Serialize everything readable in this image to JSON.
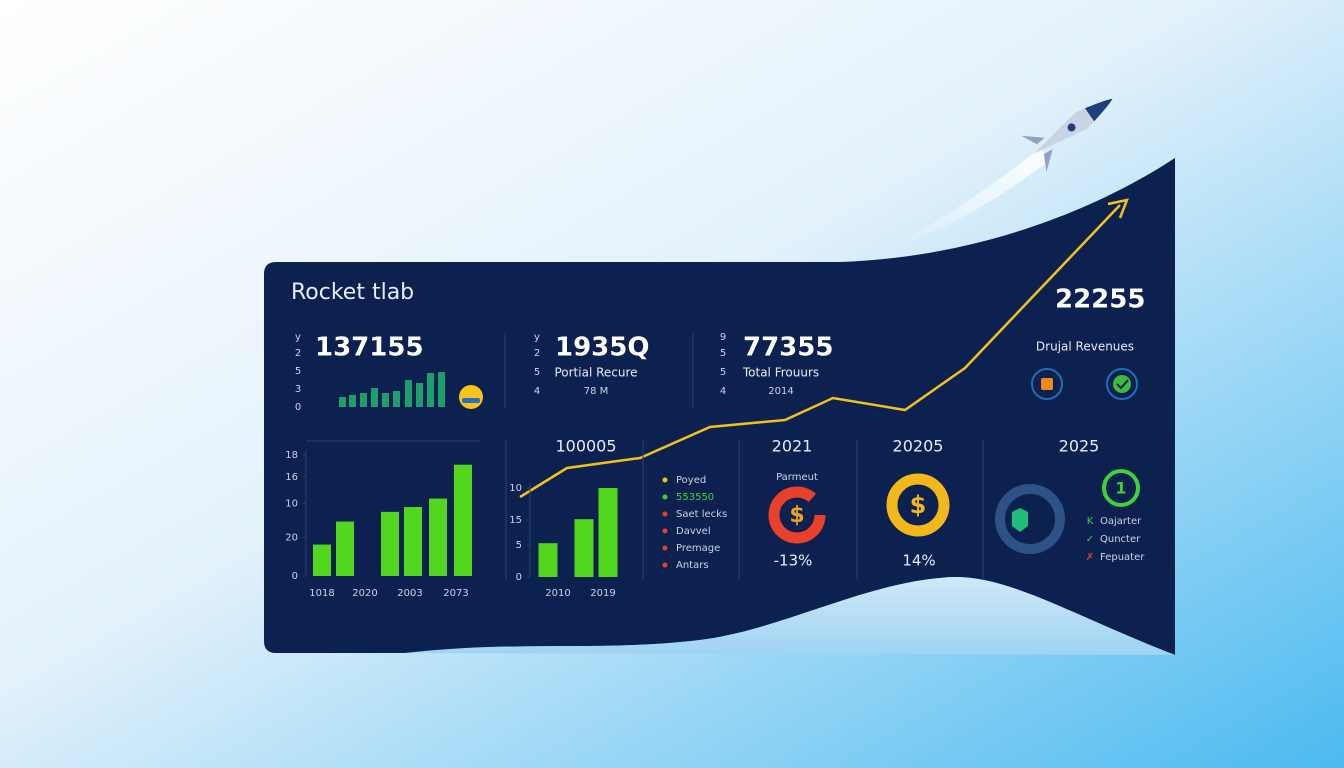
{
  "title": "Rocket tlab",
  "headline": "22255",
  "revenues_label": "Drujal Revenues",
  "kpis": [
    {
      "value": "137155",
      "ticks": [
        "y",
        "2",
        "5",
        "3",
        "0"
      ]
    },
    {
      "value": "1935Q",
      "label": "Portial Recure",
      "sub": "78 M",
      "ticks": [
        "y",
        "2",
        "5",
        "4"
      ]
    },
    {
      "value": "77355",
      "label": "Total Frouurs",
      "sub": "2014",
      "ticks": [
        "9",
        "5",
        "5",
        "4"
      ]
    }
  ],
  "charts": [
    {
      "type": "bar",
      "color": "#52d61e",
      "ylim": [
        0,
        100
      ],
      "yticks": [
        {
          "value": 100,
          "label": "18"
        },
        {
          "value": 82,
          "label": "16"
        },
        {
          "value": 60,
          "label": "10"
        },
        {
          "value": 32,
          "label": "20"
        },
        0
      ],
      "values": [
        26,
        45,
        53,
        57,
        64,
        92
      ],
      "xlabels": [
        "1018",
        "2020",
        "2003",
        "2073"
      ]
    },
    {
      "type": "bar",
      "color": "#52d61e",
      "ylim": [
        0,
        100
      ],
      "yticks": [
        {
          "value": 100,
          "label": "10"
        },
        {
          "value": 64,
          "label": "15"
        },
        {
          "value": 36,
          "label": "5"
        },
        0
      ],
      "values": [
        38,
        65,
        100
      ],
      "xlabels": [
        "2010",
        "2019"
      ]
    }
  ],
  "columns": [
    "100005",
    "2021",
    "20205",
    "2025"
  ],
  "legend": [
    "Poyed",
    "553550",
    "Saet lecks",
    "Davvel",
    "Premage",
    "Antars"
  ],
  "donuts": [
    {
      "label": "Parmeut",
      "value_label": "-13%"
    },
    {
      "value_label": "14%"
    },
    {
      "badge": "1"
    }
  ],
  "checklist": [
    "Oajarter",
    "Quncter",
    "Fepuater"
  ]
}
